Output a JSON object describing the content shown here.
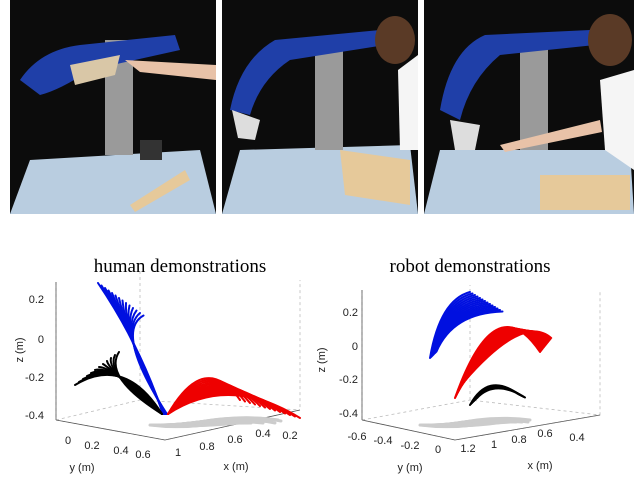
{
  "plots": [
    {
      "title": "human demonstrations",
      "z_label": "z (m)",
      "y_label": "y (m)",
      "x_label": "x (m)",
      "z_ticks": [
        "0.2",
        "0",
        "-0.2",
        "-0.4"
      ],
      "y_ticks": [
        "0",
        "0.2",
        "0.4",
        "0.6"
      ],
      "x_ticks": [
        "1",
        "0.8",
        "0.6",
        "0.4",
        "0.2"
      ]
    },
    {
      "title": "robot demonstrations",
      "z_label": "z (m)",
      "y_label": "y (m)",
      "x_label": "x (m)",
      "z_ticks": [
        "0.2",
        "0",
        "-0.2",
        "-0.4"
      ],
      "y_ticks": [
        "-0.6",
        "-0.4",
        "-0.2",
        "0"
      ],
      "x_ticks": [
        "1.2",
        "1",
        "0.8",
        "0.6",
        "0.4"
      ]
    }
  ]
}
